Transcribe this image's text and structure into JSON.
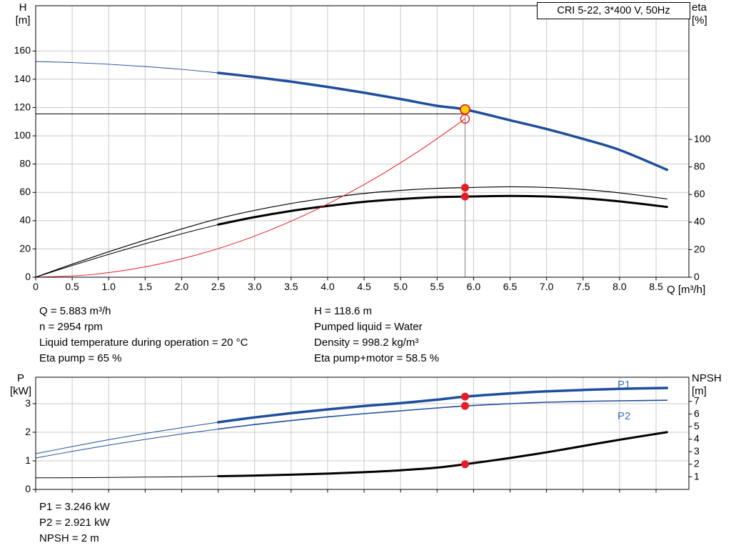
{
  "title_box": "CRI 5-22, 3*400 V, 50Hz",
  "colors": {
    "curve_blue": "#1f4e9c",
    "curve_label_blue": "#3a72c4",
    "marker_red": "#e81c24",
    "duty_yellow": "#ffd400",
    "grid": "#c9c9c9",
    "crosshair": "#808080"
  },
  "chart_data": [
    {
      "id": "hq-chart",
      "type": "line",
      "x": {
        "label": "Q [m³/h]",
        "min": 0,
        "max": 8.95,
        "ticks": [
          0,
          0.5,
          1,
          1.5,
          2,
          2.5,
          3,
          3.5,
          4,
          4.5,
          5,
          5.5,
          6,
          6.5,
          7,
          7.5,
          8,
          8.5
        ],
        "tick_labels": [
          "0",
          "0.5",
          "1.0",
          "1.5",
          "2.0",
          "2.5",
          "3.0",
          "3.5",
          "4.0",
          "4.5",
          "5.0",
          "5.5",
          "6.0",
          "6.5",
          "7.0",
          "7.5",
          "8.0",
          "8.5"
        ],
        "show_tick_labels": true
      },
      "left_axis": {
        "label": "H",
        "unit": "[m]",
        "min": 0,
        "max": 192,
        "ticks": [
          0,
          20,
          40,
          60,
          80,
          100,
          120,
          140,
          160
        ],
        "grid": true
      },
      "right_axis": {
        "label": "eta",
        "unit": "[%]",
        "min": 0,
        "max": 197,
        "ticks": [
          0,
          20,
          40,
          60,
          80,
          100
        ]
      },
      "series": [
        {
          "name": "pump-head-curve",
          "axis": "left",
          "color": "#1f4e9c",
          "width": 3.5,
          "thin_until": 2.5,
          "x": [
            0,
            0.5,
            1,
            1.5,
            2,
            2.5,
            3,
            3.5,
            4,
            4.5,
            5,
            5.5,
            5.883,
            6.5,
            7,
            7.5,
            8,
            8.65
          ],
          "y": [
            152.5,
            151.8,
            150.6,
            149.0,
            147.0,
            144.5,
            141.6,
            138.3,
            134.6,
            130.5,
            126.0,
            121.2,
            118.6,
            111.0,
            104.8,
            97.8,
            90.0,
            76.0
          ]
        },
        {
          "name": "eta-pump-curve",
          "axis": "right",
          "color": "#000000",
          "width": 1.2,
          "x": [
            0,
            0.5,
            1,
            1.5,
            2,
            2.5,
            3,
            3.5,
            4,
            4.5,
            5,
            5.5,
            5.883,
            6.5,
            7,
            7.5,
            8,
            8.65
          ],
          "y": [
            0,
            9.5,
            18.5,
            27,
            35,
            42.5,
            48.5,
            53.5,
            57.5,
            60.8,
            63,
            64.5,
            65,
            65.6,
            65.1,
            63.7,
            61.2,
            56.8
          ]
        },
        {
          "name": "eta-pump-motor-curve",
          "axis": "right",
          "color": "#000000",
          "width": 3,
          "thin_until": 2.5,
          "x": [
            0,
            0.5,
            1,
            1.5,
            2,
            2.5,
            3,
            3.5,
            4,
            4.5,
            5,
            5.5,
            5.883,
            6.5,
            7,
            7.5,
            8,
            8.65
          ],
          "y": [
            0,
            8.5,
            16.6,
            24.3,
            31.5,
            38.2,
            43.6,
            48.1,
            51.7,
            54.7,
            56.7,
            58.1,
            58.5,
            59.0,
            58.6,
            57.3,
            55.0,
            51.0
          ]
        },
        {
          "name": "system-curve",
          "axis": "left",
          "color": "#e81c24",
          "width": 1,
          "x": [
            0,
            0.75,
            1.5,
            2.25,
            3,
            3.75,
            4.5,
            5.25,
            5.883
          ],
          "y": [
            0,
            1.8,
            7.3,
            16.4,
            29.1,
            45.5,
            65.5,
            89.2,
            112.0
          ]
        }
      ],
      "crosshair": {
        "x": 5.883,
        "h_value": 115.5,
        "v_top": 122
      },
      "markers": [
        {
          "style": "open",
          "x": 5.883,
          "y": 112.0,
          "axis": "left"
        },
        {
          "style": "duty",
          "x": 5.883,
          "y": 118.6,
          "axis": "left"
        },
        {
          "style": "dot",
          "x": 5.883,
          "y": 65,
          "axis": "right"
        },
        {
          "style": "dot",
          "x": 5.883,
          "y": 58.5,
          "axis": "right"
        }
      ],
      "duty_point": {
        "Q": 5.883,
        "H": 118.6,
        "eta_pump": 65,
        "eta_pump_motor": 58.5
      }
    },
    {
      "id": "pn-chart",
      "type": "line",
      "x": {
        "label": "",
        "min": 0,
        "max": 8.95,
        "ticks": [
          0,
          0.5,
          1,
          1.5,
          2,
          2.5,
          3,
          3.5,
          4,
          4.5,
          5,
          5.5,
          6,
          6.5,
          7,
          7.5,
          8,
          8.5
        ],
        "tick_labels": [],
        "show_tick_labels": false
      },
      "left_axis": {
        "label": "P",
        "unit": "[kW]",
        "min": 0,
        "max": 3.925,
        "ticks": [
          0,
          1,
          2,
          3
        ],
        "grid": true
      },
      "right_axis": {
        "label": "NPSH",
        "unit": "[m]",
        "min": 0,
        "max": 8.92,
        "ticks": [
          1,
          2,
          3,
          4,
          5,
          6,
          7
        ]
      },
      "series": [
        {
          "name": "p2-power-curve",
          "axis": "left",
          "color": "#1f4e9c",
          "width": 1.6,
          "thin_until": 2.5,
          "x": [
            0,
            0.5,
            1,
            1.5,
            2,
            2.5,
            3,
            3.5,
            4,
            4.5,
            5,
            5.5,
            5.883,
            6.5,
            7,
            7.5,
            8,
            8.65
          ],
          "y": [
            1.1,
            1.33,
            1.55,
            1.75,
            1.94,
            2.11,
            2.27,
            2.41,
            2.54,
            2.65,
            2.75,
            2.85,
            2.921,
            3.0,
            3.05,
            3.08,
            3.1,
            3.12
          ]
        },
        {
          "name": "p1-power-curve",
          "axis": "left",
          "color": "#1f4e9c",
          "width": 3.5,
          "thin_until": 2.5,
          "x": [
            0,
            0.5,
            1,
            1.5,
            2,
            2.5,
            3,
            3.5,
            4,
            4.5,
            5,
            5.5,
            5.883,
            6.5,
            7,
            7.5,
            8,
            8.65
          ],
          "y": [
            1.25,
            1.5,
            1.74,
            1.96,
            2.16,
            2.35,
            2.52,
            2.67,
            2.8,
            2.92,
            3.02,
            3.14,
            3.246,
            3.36,
            3.43,
            3.48,
            3.52,
            3.55
          ]
        },
        {
          "name": "npsh-curve",
          "axis": "right",
          "color": "#000000",
          "width": 3,
          "thin_until": 2.5,
          "x": [
            0,
            0.5,
            1,
            1.5,
            2,
            2.5,
            3,
            3.5,
            4,
            4.5,
            5,
            5.5,
            5.883,
            6.5,
            7,
            7.5,
            8,
            8.65
          ],
          "y": [
            0.92,
            0.93,
            0.95,
            0.98,
            1.0,
            1.05,
            1.1,
            1.17,
            1.26,
            1.37,
            1.52,
            1.73,
            2.0,
            2.5,
            2.95,
            3.45,
            3.95,
            4.55
          ]
        }
      ],
      "crosshair": null,
      "markers": [
        {
          "style": "dot",
          "x": 5.883,
          "y": 3.246,
          "axis": "left"
        },
        {
          "style": "dot",
          "x": 5.883,
          "y": 2.921,
          "axis": "left"
        },
        {
          "style": "dot",
          "x": 5.883,
          "y": 2.0,
          "axis": "right"
        }
      ],
      "curve_labels": [
        {
          "text": "P1"
        },
        {
          "text": "P2"
        }
      ],
      "duty_point": {
        "Q": 5.883,
        "P1_kW": 3.246,
        "P2_kW": 2.921,
        "NPSH_m": 2
      }
    }
  ],
  "info_top": {
    "left": [
      "Q = 5.883 m³/h",
      "n = 2954 rpm",
      "Liquid temperature during operation = 20 °C",
      "Eta pump = 65 %"
    ],
    "right": [
      "H = 118.6 m",
      "Pumped liquid = Water",
      "Density = 998.2 kg/m³",
      "Eta pump+motor = 58.5 %"
    ]
  },
  "info_bottom": [
    "P1 = 3.246 kW",
    "P2 = 2.921 kW",
    "NPSH = 2 m"
  ]
}
